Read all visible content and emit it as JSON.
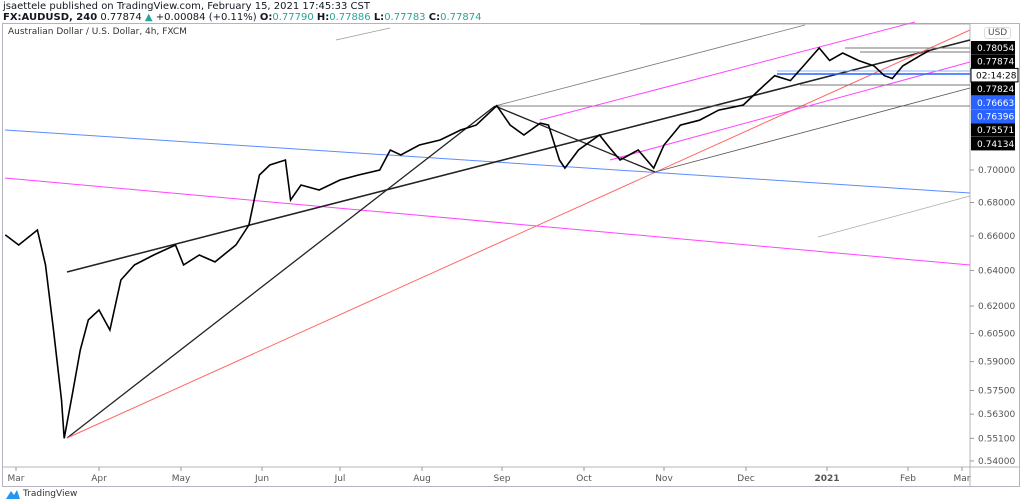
{
  "header": {
    "publisher_line": "jsaettele published on TradingView.com, February 15, 2021 17:45:33 CST",
    "symbol": "FX:AUDUSD, 240",
    "last": "0.77874",
    "change": "+0.00084 (+0.11%)",
    "o_label": "O:",
    "o": "0.77790",
    "h_label": "H:",
    "h": "0.77886",
    "l_label": "L:",
    "l": "0.77783",
    "c_label": "C:",
    "c": "0.77874"
  },
  "legend": "Australian Dollar / U.S. Dollar, 4h, FXCM",
  "currency": "USD",
  "footer": {
    "brand": "TradingView"
  },
  "colors": {
    "price": "#000000",
    "blue_line": "#2962ff",
    "magenta": "#ff00ff",
    "red": "#ff4d4d",
    "label_bg": "#000000",
    "label_blue": "#2962ff"
  },
  "chart_data": {
    "type": "line",
    "style": "candlestick (approximated as close path)",
    "xlabel": "",
    "ylabel": "",
    "y_scale": "log",
    "ylim": [
      0.54,
      0.795
    ],
    "grid": false,
    "x_tick_labels": [
      "Mar",
      "Apr",
      "May",
      "Jun",
      "Jul",
      "Aug",
      "Sep",
      "Oct",
      "Nov",
      "Dec",
      "2021",
      "Feb",
      "Mar"
    ],
    "y_tick_labels": [
      "0.70000",
      "0.68000",
      "0.66000",
      "0.64000",
      "0.62000",
      "0.60500",
      "0.59000",
      "0.57500",
      "0.56300",
      "0.55100",
      "0.54000"
    ],
    "price_labels": [
      {
        "text": "0.78054",
        "style": "black"
      },
      {
        "text": "0.77874",
        "style": "black"
      },
      {
        "text": "02:14:28",
        "style": "countdown"
      },
      {
        "text": "0.77824",
        "style": "black"
      },
      {
        "text": "0.76663",
        "style": "blue"
      },
      {
        "text": "0.76396",
        "style": "blue"
      },
      {
        "text": "0.75571",
        "style": "black"
      },
      {
        "text": "0.74134",
        "style": "black"
      }
    ],
    "series": [
      {
        "x": [
          "2020-02-26",
          "2020-03-02",
          "2020-03-09",
          "2020-03-12",
          "2020-03-15",
          "2020-03-18",
          "2020-03-19",
          "2020-03-22",
          "2020-03-25",
          "2020-03-28",
          "2020-04-01",
          "2020-04-05",
          "2020-04-09",
          "2020-04-14",
          "2020-04-21",
          "2020-04-29",
          "2020-05-02",
          "2020-05-08",
          "2020-05-14",
          "2020-05-22",
          "2020-05-27",
          "2020-05-31",
          "2020-06-04",
          "2020-06-10",
          "2020-06-12",
          "2020-06-16",
          "2020-06-23",
          "2020-07-01",
          "2020-07-08",
          "2020-07-16",
          "2020-07-20",
          "2020-07-24",
          "2020-07-31",
          "2020-08-08",
          "2020-08-16",
          "2020-08-22",
          "2020-08-30",
          "2020-09-04",
          "2020-09-09",
          "2020-09-15",
          "2020-09-18",
          "2020-09-22",
          "2020-09-24",
          "2020-09-29",
          "2020-10-07",
          "2020-10-11",
          "2020-10-15",
          "2020-10-22",
          "2020-10-28",
          "2020-11-01",
          "2020-11-07",
          "2020-11-14",
          "2020-11-21",
          "2020-11-30",
          "2020-12-06",
          "2020-12-12",
          "2020-12-18",
          "2020-12-23",
          "2020-12-29",
          "2021-01-02",
          "2021-01-07",
          "2021-01-13",
          "2021-01-19",
          "2021-01-23",
          "2021-01-26",
          "2021-01-30",
          "2021-02-07",
          "2021-02-12"
        ],
        "y": [
          0.6606,
          0.6547,
          0.6635,
          0.6432,
          0.6069,
          0.5702,
          0.551,
          0.5727,
          0.5962,
          0.6124,
          0.6178,
          0.6069,
          0.6346,
          0.6432,
          0.6489,
          0.6547,
          0.6432,
          0.6489,
          0.6449,
          0.6547,
          0.6665,
          0.6969,
          0.7031,
          0.7063,
          0.6815,
          0.6907,
          0.6876,
          0.6938,
          0.6969,
          0.7,
          0.7126,
          0.7094,
          0.7158,
          0.719,
          0.7254,
          0.7286,
          0.7413,
          0.7286,
          0.7222,
          0.7299,
          0.7286,
          0.7063,
          0.7012,
          0.7126,
          0.7222,
          0.7139,
          0.7063,
          0.7126,
          0.7012,
          0.7158,
          0.7286,
          0.7318,
          0.7384,
          0.7418,
          0.7518,
          0.7614,
          0.7581,
          0.7681,
          0.7805,
          0.7718,
          0.777,
          0.7718,
          0.7681,
          0.7614,
          0.7595,
          0.7681,
          0.775,
          0.7787
        ]
      }
    ]
  }
}
